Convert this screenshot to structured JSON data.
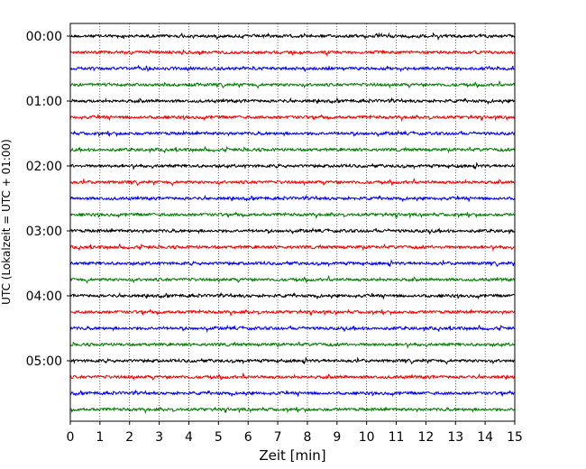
{
  "chart_data": {
    "type": "line",
    "title": "",
    "xlabel": "Zeit  [min]",
    "ylabel": "UTC (Lokalzeit = UTC + 01:00)",
    "xlim": [
      0,
      15
    ],
    "xticks": [
      "0",
      "1",
      "2",
      "3",
      "4",
      "5",
      "6",
      "7",
      "8",
      "9",
      "10",
      "11",
      "12",
      "13",
      "14",
      "15"
    ],
    "yticks": [
      "00:00",
      "01:00",
      "02:00",
      "03:00",
      "04:00",
      "05:00"
    ],
    "grid": "vertical-dotted",
    "legend": "none",
    "trace_interval_minutes": 15,
    "trace_count": 24,
    "trace_colors": [
      "#000000",
      "#ff0000",
      "#0000ff",
      "#008000"
    ]
  }
}
